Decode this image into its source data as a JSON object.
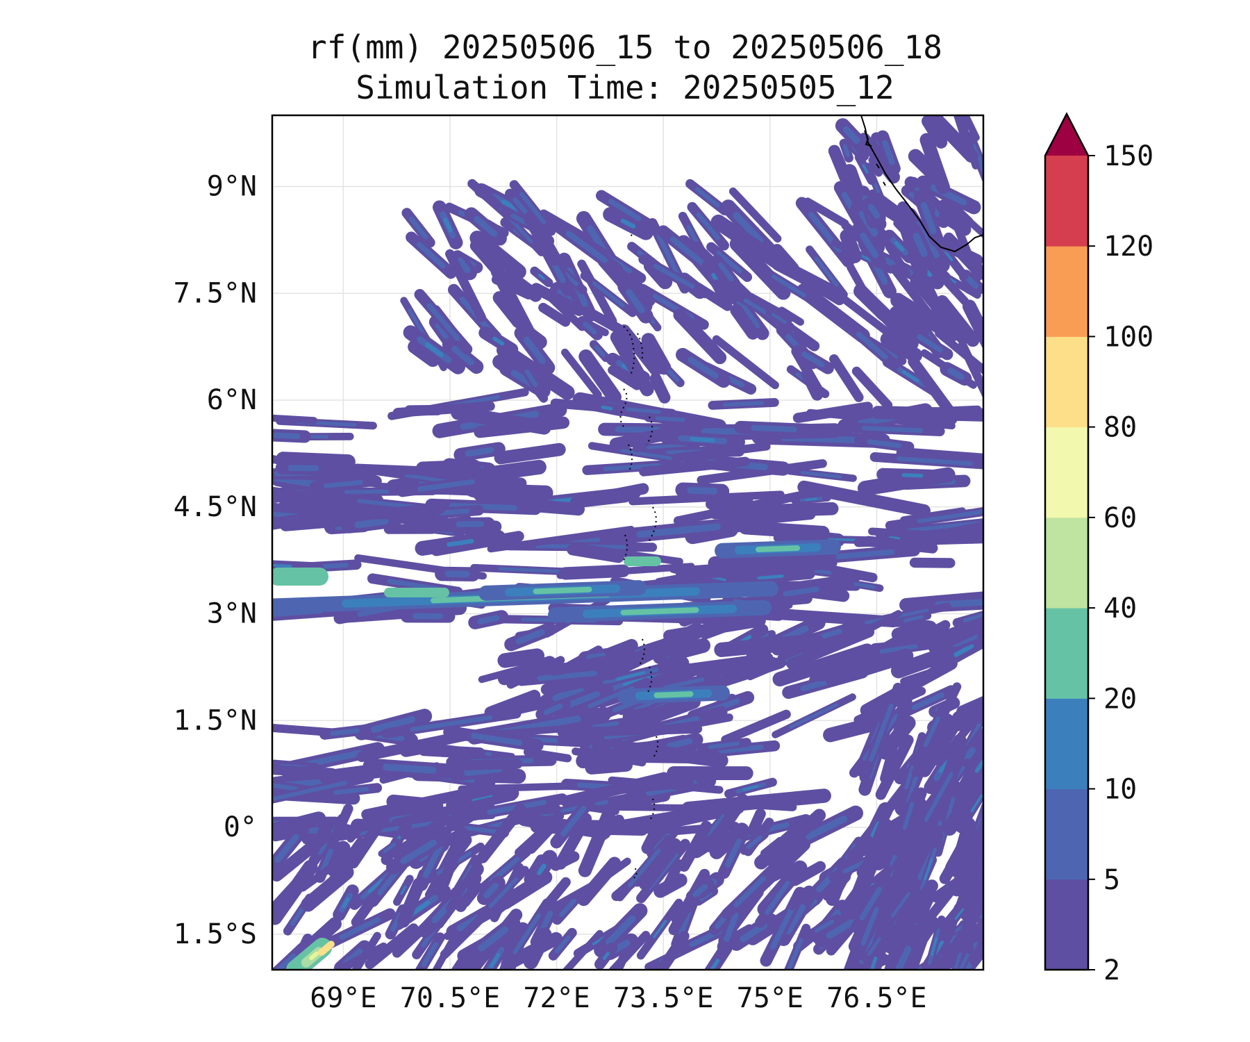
{
  "title": {
    "line1": "rf(mm) 20250506_15 to 20250506_18",
    "line2": "Simulation Time: 20250505_12"
  },
  "map": {
    "lon_range": [
      68.0,
      78.0
    ],
    "lat_range": [
      -2.0,
      10.0
    ],
    "x_ticks": [
      {
        "value": 69.0,
        "label": "69°E"
      },
      {
        "value": 70.5,
        "label": "70.5°E"
      },
      {
        "value": 72.0,
        "label": "72°E"
      },
      {
        "value": 73.5,
        "label": "73.5°E"
      },
      {
        "value": 75.0,
        "label": "75°E"
      },
      {
        "value": 76.5,
        "label": "76.5°E"
      }
    ],
    "y_ticks": [
      {
        "value": 9.0,
        "label": "9°N"
      },
      {
        "value": 7.5,
        "label": "7.5°N"
      },
      {
        "value": 6.0,
        "label": "6°N"
      },
      {
        "value": 4.5,
        "label": "4.5°N"
      },
      {
        "value": 3.0,
        "label": "3°N"
      },
      {
        "value": 1.5,
        "label": "1.5°N"
      },
      {
        "value": 0.0,
        "label": "0°"
      },
      {
        "value": -1.5,
        "label": "1.5°S"
      }
    ],
    "gridlines": true,
    "rain_colors": [
      "#5e4fa2",
      "#4e66b1",
      "#3b80bd",
      "#66c2a5",
      "#abdda4",
      "#e6f598",
      "#fee08b",
      "#fdae61",
      "#f46d43",
      "#d53e4f"
    ]
  },
  "colorbar": {
    "levels": [
      2,
      5,
      10,
      20,
      40,
      60,
      80,
      100,
      120,
      150
    ],
    "labels": [
      "2",
      "5",
      "10",
      "20",
      "40",
      "60",
      "80",
      "100",
      "120",
      "150"
    ],
    "colors": [
      "#5e4fa2",
      "#4e66b1",
      "#3b80bd",
      "#66c2a5",
      "#bfe3a0",
      "#f2f8ad",
      "#fdde89",
      "#f99d55",
      "#d53e4f"
    ],
    "extend_color": "#9e0142",
    "extend": "max"
  }
}
